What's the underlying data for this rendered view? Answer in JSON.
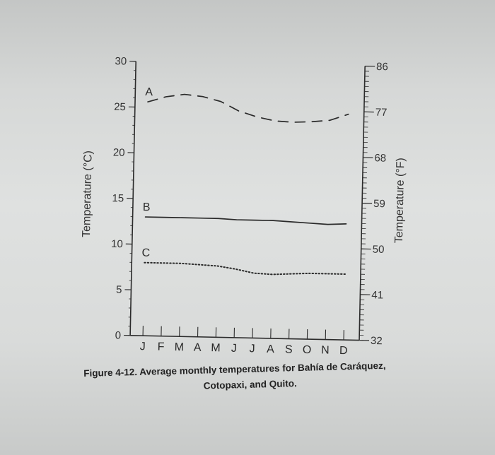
{
  "chart_data": {
    "type": "line",
    "categories": [
      "J",
      "F",
      "M",
      "A",
      "M",
      "J",
      "J",
      "A",
      "S",
      "O",
      "N",
      "D"
    ],
    "series": [
      {
        "name": "A",
        "values": [
          25.6,
          26.2,
          26.5,
          26.3,
          25.8,
          24.8,
          24.2,
          23.8,
          23.7,
          23.8,
          24.0,
          24.7
        ],
        "style": "dashed",
        "color": "#2a2a2a"
      },
      {
        "name": "B",
        "values": [
          13.0,
          13.0,
          13.0,
          13.0,
          13.0,
          12.9,
          12.9,
          12.9,
          12.8,
          12.7,
          12.6,
          12.7
        ],
        "style": "solid",
        "color": "#2a2a2a"
      },
      {
        "name": "C",
        "values": [
          8.0,
          8.0,
          8.0,
          7.9,
          7.8,
          7.5,
          7.1,
          7.0,
          7.1,
          7.2,
          7.2,
          7.2
        ],
        "style": "dotted",
        "color": "#2a2a2a"
      }
    ],
    "ylabel_left": "Temperature (°C)",
    "ylabel_right": "Temperature (°F)",
    "ylim": [
      0,
      30
    ],
    "yticks_left": [
      0,
      5,
      10,
      15,
      20,
      25,
      30
    ],
    "yticks_right": [
      {
        "c": 0,
        "label": "32"
      },
      {
        "c": 5,
        "label": "41"
      },
      {
        "c": 10,
        "label": "50"
      },
      {
        "c": 15,
        "label": "59"
      },
      {
        "c": 20,
        "label": "68"
      },
      {
        "c": 25,
        "label": "77"
      },
      {
        "c": 30,
        "label": "86"
      }
    ],
    "grid": false,
    "legend": "labels-at-left-of-lines"
  },
  "caption": {
    "line1": "Figure 4-12. Average monthly temperatures for Bahía de Caráquez,",
    "line2": "Cotopaxi, and Quito."
  }
}
